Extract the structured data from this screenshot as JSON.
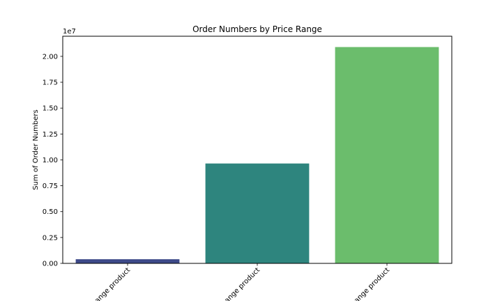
{
  "chart_data": {
    "type": "bar",
    "title": "Order Numbers by Price Range",
    "xlabel": "",
    "ylabel": "Sum of Order Numbers",
    "offset_text": "1e7",
    "categories": [
      "ange product",
      "ange product",
      "ange product"
    ],
    "values": [
      400000,
      9650000,
      20900000
    ],
    "colors": [
      "#3e4a89",
      "#2e857e",
      "#6bbd6c"
    ],
    "ylim": [
      0,
      21945000
    ],
    "yticks": [
      0,
      2500000,
      5000000,
      7500000,
      10000000,
      12500000,
      15000000,
      17500000,
      20000000
    ],
    "ytick_labels": [
      "0.00",
      "0.25",
      "0.50",
      "0.75",
      "1.00",
      "1.25",
      "1.50",
      "1.75",
      "2.00"
    ],
    "grid": false,
    "legend": "none"
  }
}
